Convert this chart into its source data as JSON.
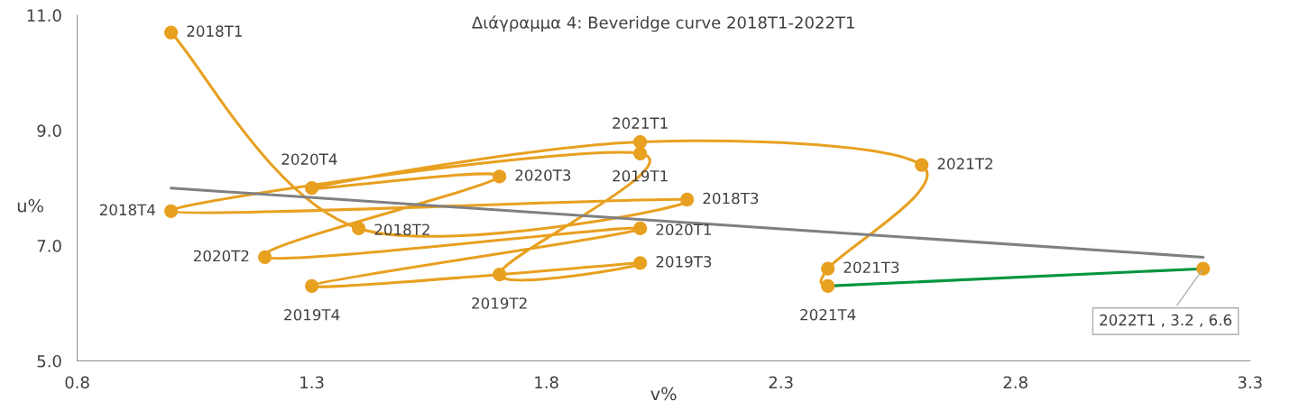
{
  "chart_data": {
    "type": "line",
    "title": "Διάγραμμα 4: Beveridge curve 2018T1-2022T1",
    "xlabel": "v%",
    "ylabel": "u%",
    "xlim": [
      0.8,
      3.3
    ],
    "xticks": [
      0.8,
      1.3,
      1.8,
      2.3,
      2.8,
      3.3
    ],
    "ylim": [
      5.0,
      11.0
    ],
    "yticks": [
      {
        "value": 5,
        "label": "5.0"
      },
      {
        "value": 7,
        "label": "7.0"
      },
      {
        "value": 9,
        "label": "9.0"
      },
      {
        "value": 11,
        "label": "11.0"
      }
    ],
    "grid": false,
    "legend": false,
    "series": [
      {
        "color": "#e8a020",
        "marker": "circle",
        "x": [
          1.0,
          1.4,
          2.1,
          1.0,
          2.0,
          1.7,
          2.0,
          1.3,
          2.0,
          1.2,
          1.7,
          1.3,
          2.0,
          2.6,
          2.4,
          2.4
        ],
        "values": [
          10.7,
          7.3,
          7.8,
          7.6,
          8.6,
          6.5,
          6.7,
          6.3,
          7.3,
          6.8,
          8.2,
          8.0,
          8.8,
          8.4,
          6.6,
          6.3
        ]
      },
      {
        "color": "#00963c",
        "marker": "none",
        "x": [
          2.4,
          3.2
        ],
        "values": [
          6.3,
          6.6
        ]
      },
      {
        "type": "scatter",
        "color": "#e8a020",
        "marker": "circle",
        "x": [
          3.2
        ],
        "values": [
          6.6
        ]
      },
      {
        "color": "#808080",
        "marker": "none",
        "x": [
          1.0,
          3.2
        ],
        "values": [
          8.0,
          6.8
        ]
      }
    ],
    "annotations": [
      {
        "text": "2018T1",
        "x": 1.0,
        "y": 10.7
      },
      {
        "text": "2018T2",
        "x": 1.4,
        "y": 7.3
      },
      {
        "text": "2018T3",
        "x": 2.1,
        "y": 7.8
      },
      {
        "text": "2018T4",
        "x": 1.0,
        "y": 7.6
      },
      {
        "text": "2019T1",
        "x": 2.0,
        "y": 8.6
      },
      {
        "text": "2019T2",
        "x": 1.7,
        "y": 6.5
      },
      {
        "text": "2019T3",
        "x": 2.0,
        "y": 6.7
      },
      {
        "text": "2019T4",
        "x": 1.3,
        "y": 6.3
      },
      {
        "text": "2020T1",
        "x": 2.0,
        "y": 7.3
      },
      {
        "text": "2020T2",
        "x": 1.2,
        "y": 6.8
      },
      {
        "text": "2020T3",
        "x": 1.7,
        "y": 8.2
      },
      {
        "text": "2020T4",
        "x": 1.3,
        "y": 8.0
      },
      {
        "text": "2021T1",
        "x": 2.0,
        "y": 8.8
      },
      {
        "text": "2021T2",
        "x": 2.6,
        "y": 8.4
      },
      {
        "text": "2021T3",
        "x": 2.4,
        "y": 6.6
      },
      {
        "text": "2021T4",
        "x": 2.4,
        "y": 6.3
      },
      {
        "text": "2022T1 , 3.2 , 6.6",
        "x": 3.2,
        "y": 6.6
      }
    ]
  }
}
